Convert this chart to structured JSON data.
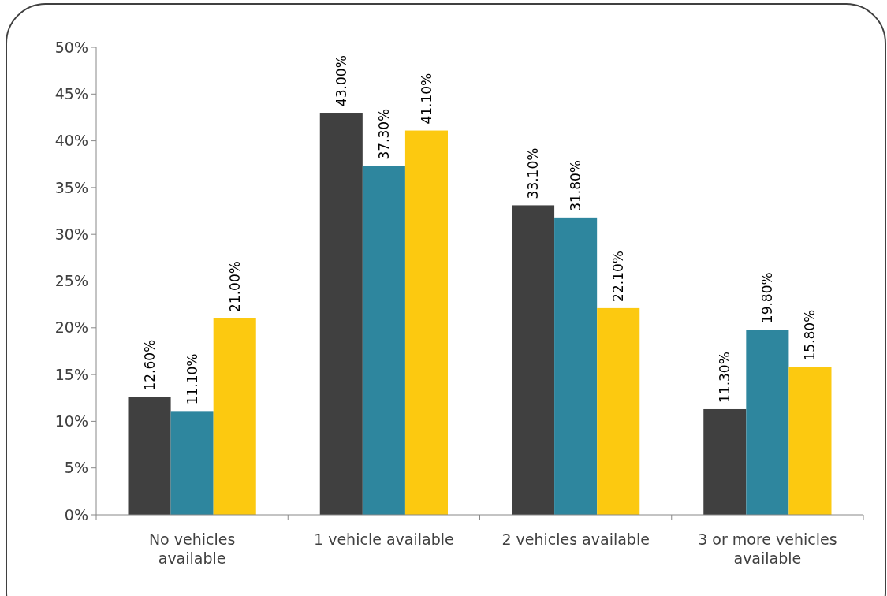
{
  "chart_data": {
    "type": "bar",
    "categories": [
      "No vehicles\navailable",
      "1 vehicle available",
      "2 vehicles available",
      "3 or more vehicles\navailable"
    ],
    "series": [
      {
        "color": "#404040",
        "values": [
          12.6,
          43.0,
          33.1,
          11.3
        ],
        "value_labels": [
          "12.60%",
          "43.00%",
          "33.10%",
          "11.30%"
        ]
      },
      {
        "color": "#2e869e",
        "values": [
          11.1,
          37.3,
          31.8,
          19.8
        ],
        "value_labels": [
          "11.10%",
          "37.30%",
          "31.80%",
          "19.80%"
        ]
      },
      {
        "color": "#fcc910",
        "values": [
          21.0,
          41.1,
          22.1,
          15.8
        ],
        "value_labels": [
          "21.00%",
          "41.10%",
          "22.10%",
          "15.80%"
        ]
      }
    ],
    "ylim": [
      0,
      50
    ],
    "yticks": [
      {
        "value": 0,
        "label": "0%"
      },
      {
        "value": 5,
        "label": "5%"
      },
      {
        "value": 10,
        "label": "10%"
      },
      {
        "value": 15,
        "label": "15%"
      },
      {
        "value": 20,
        "label": "20%"
      },
      {
        "value": 25,
        "label": "25%"
      },
      {
        "value": 30,
        "label": "30%"
      },
      {
        "value": 35,
        "label": "35%"
      },
      {
        "value": 40,
        "label": "40%"
      },
      {
        "value": 45,
        "label": "45%"
      },
      {
        "value": 50,
        "label": "50%"
      }
    ],
    "grid": false
  }
}
